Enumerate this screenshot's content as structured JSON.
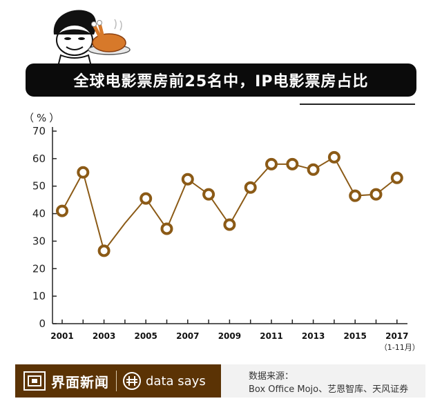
{
  "header": {
    "title": "全球电影票房前25名中，IP电影票房占比",
    "mascot_icon": "meme-face-holding-roast-chicken"
  },
  "chart_data": {
    "type": "line",
    "title": "全球电影票房前25名中，IP电影票房占比",
    "ylabel": "（%）",
    "xlabel": "",
    "x": [
      2001,
      2002,
      2003,
      2004,
      2005,
      2006,
      2007,
      2008,
      2009,
      2010,
      2011,
      2012,
      2013,
      2014,
      2015,
      2016,
      2017
    ],
    "values": [
      41,
      55,
      26.5,
      36.5,
      45.5,
      34.5,
      52.5,
      47,
      36,
      49.5,
      58,
      58,
      56,
      60.5,
      46.5,
      47,
      53
    ],
    "marked": [
      true,
      true,
      true,
      false,
      true,
      true,
      true,
      true,
      true,
      true,
      true,
      true,
      true,
      true,
      true,
      true,
      true
    ],
    "ylim": [
      0,
      70
    ],
    "yticks": [
      "0",
      "10",
      "20",
      "30",
      "40",
      "50",
      "60",
      "70"
    ],
    "xticks": [
      "2001",
      "2003",
      "2005",
      "2007",
      "2009",
      "2011",
      "2013",
      "2015",
      "2017"
    ],
    "x_note": "（1-11月）",
    "line_color": "#8b5a16",
    "grid": false
  },
  "footer": {
    "brand": "界面新闻",
    "product": "data says",
    "brand_color": "#5b3305",
    "source_label": "数据来源：",
    "source_value": "Box Office Mojo、艺恩智库、天风证券"
  }
}
